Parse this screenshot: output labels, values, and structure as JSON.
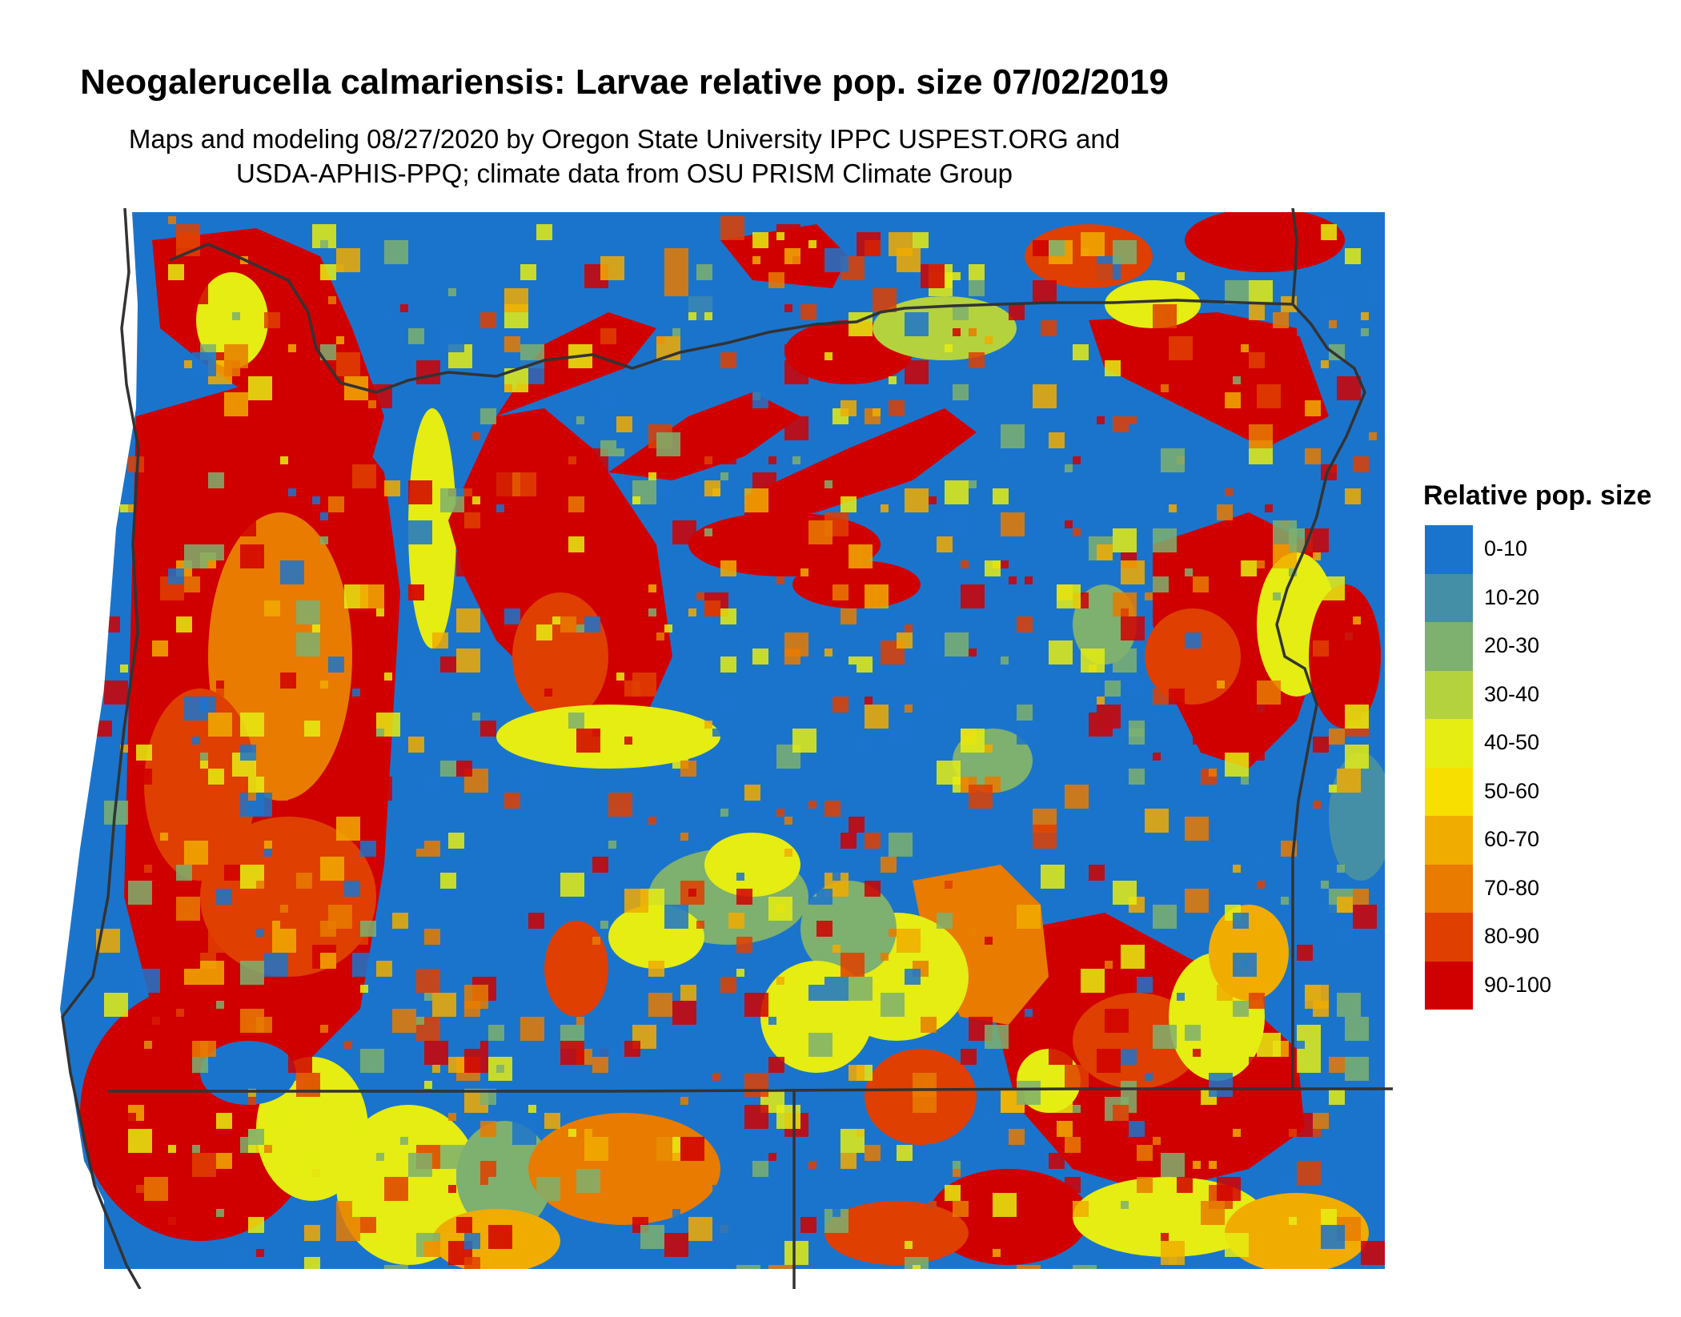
{
  "title": "Neogalerucella calmariensis: Larvae relative pop. size 07/02/2019",
  "subtitle_line1": "Maps and modeling 08/27/2020 by Oregon State University IPPC USPEST.ORG and",
  "subtitle_line2": "USDA-APHIS-PPQ; climate data from OSU PRISM Climate Group",
  "legend": {
    "title": "Relative pop. size",
    "classes": [
      {
        "label": "0-10",
        "color": "#1b74cc"
      },
      {
        "label": "10-20",
        "color": "#448fa6"
      },
      {
        "label": "20-30",
        "color": "#7eb06f"
      },
      {
        "label": "30-40",
        "color": "#b3d23e"
      },
      {
        "label": "40-50",
        "color": "#e5ed12"
      },
      {
        "label": "50-60",
        "color": "#f7e000"
      },
      {
        "label": "60-70",
        "color": "#f1ac00"
      },
      {
        "label": "70-80",
        "color": "#e87b00"
      },
      {
        "label": "80-90",
        "color": "#df3f00"
      },
      {
        "label": "90-100",
        "color": "#d10000"
      }
    ]
  },
  "map": {
    "region": "Oregon and surrounding areas",
    "boundary_color": "#333333"
  }
}
